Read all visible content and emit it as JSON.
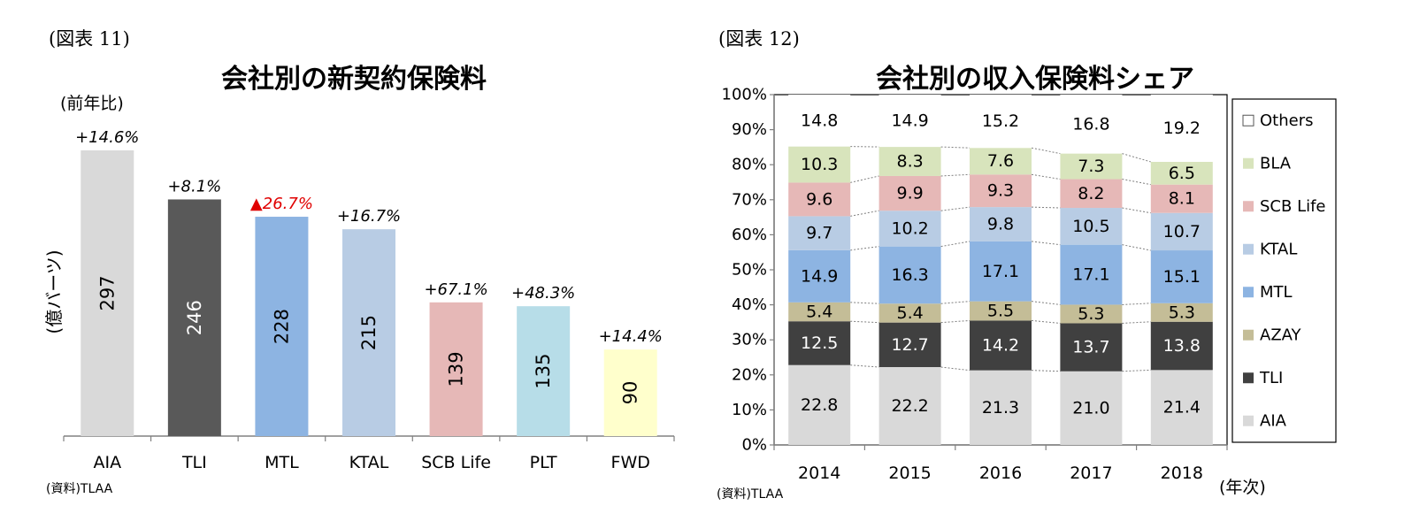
{
  "charts": [
    {
      "figure_label": "(図表 11)",
      "title": "会社別の新契約保険料",
      "growth_header": "(前年比)",
      "ylabel": "(億バーツ)",
      "source": "(資料)TLAA",
      "colors": [
        "#d9d9d9",
        "#595959",
        "#8db4e2",
        "#b8cce4",
        "#e6b8b7",
        "#b7dde8",
        "#ffffcc"
      ],
      "negative_color": "#e00000"
    },
    {
      "figure_label": "(図表 12)",
      "title": "会社別の収入保険料シェア",
      "xlabel": "(年次)",
      "source": "(資料)TLAA",
      "colors": {
        "AIA": "#d9d9d9",
        "TLI": "#404040",
        "AZAY": "#c4bd97",
        "MTL": "#8db4e2",
        "KTAL": "#b8cce4",
        "SCB Life": "#e6b8b7",
        "BLA": "#d8e4bc",
        "Others": "#ffffff"
      }
    }
  ],
  "chart_data": [
    {
      "type": "bar",
      "categories": [
        "AIA",
        "TLI",
        "MTL",
        "KTAL",
        "SCB Life",
        "PLT",
        "FWD"
      ],
      "values": [
        297,
        246,
        228,
        215,
        139,
        135,
        90
      ],
      "growth_labels": [
        "+14.6%",
        "+8.1%",
        "▲26.7%",
        "+16.7%",
        "+67.1%",
        "+48.3%",
        "+14.4%"
      ],
      "growth_negative": [
        false,
        false,
        true,
        false,
        false,
        false,
        false
      ],
      "title": "会社別の新契約保険料",
      "xlabel": "",
      "ylabel": "(億バーツ)",
      "ylim": [
        0,
        300
      ],
      "grid": false,
      "legend": "none"
    },
    {
      "type": "bar",
      "stacked": true,
      "normalized": true,
      "categories": [
        "2014",
        "2015",
        "2016",
        "2017",
        "2018"
      ],
      "series": [
        {
          "name": "AIA",
          "values": [
            22.8,
            22.2,
            21.3,
            21.0,
            21.4
          ]
        },
        {
          "name": "TLI",
          "values": [
            12.5,
            12.7,
            14.2,
            13.7,
            13.8
          ]
        },
        {
          "name": "AZAY",
          "values": [
            5.4,
            5.4,
            5.5,
            5.3,
            5.3
          ]
        },
        {
          "name": "MTL",
          "values": [
            14.9,
            16.3,
            17.1,
            17.1,
            15.1
          ]
        },
        {
          "name": "KTAL",
          "values": [
            9.7,
            10.2,
            9.8,
            10.5,
            10.7
          ]
        },
        {
          "name": "SCB Life",
          "values": [
            9.6,
            9.9,
            9.3,
            8.2,
            8.1
          ]
        },
        {
          "name": "BLA",
          "values": [
            10.3,
            8.3,
            7.6,
            7.3,
            6.5
          ]
        },
        {
          "name": "Others",
          "values": [
            14.8,
            14.9,
            15.2,
            16.8,
            19.2
          ]
        }
      ],
      "value_labels": [
        [
          "22.8",
          "22.2",
          "21.3",
          "21.0",
          "21.4"
        ],
        [
          "12.5",
          "12.7",
          "14.2",
          "13.7",
          "13.8"
        ],
        [
          "5.4",
          "5.4",
          "5.5",
          "5.3",
          "5.3"
        ],
        [
          "14.9",
          "16.3",
          "17.1",
          "17.1",
          "15.1"
        ],
        [
          "9.7",
          "10.2",
          "9.8",
          "10.5",
          "10.7"
        ],
        [
          "9.6",
          "9.9",
          "9.3",
          "8.2",
          "8.1"
        ],
        [
          "10.3",
          "8.3",
          "7.6",
          "7.3",
          "6.5"
        ],
        [
          "14.8",
          "14.9",
          "15.2",
          "16.8",
          "19.2"
        ]
      ],
      "yticks": [
        "0%",
        "10%",
        "20%",
        "30%",
        "40%",
        "50%",
        "60%",
        "70%",
        "80%",
        "90%",
        "100%"
      ],
      "title": "会社別の収入保険料シェア",
      "xlabel": "(年次)",
      "ylabel": "",
      "ylim": [
        0,
        100
      ],
      "grid": false,
      "legend": "right",
      "legend_order": [
        "Others",
        "BLA",
        "SCB Life",
        "KTAL",
        "MTL",
        "AZAY",
        "TLI",
        "AIA"
      ]
    }
  ]
}
